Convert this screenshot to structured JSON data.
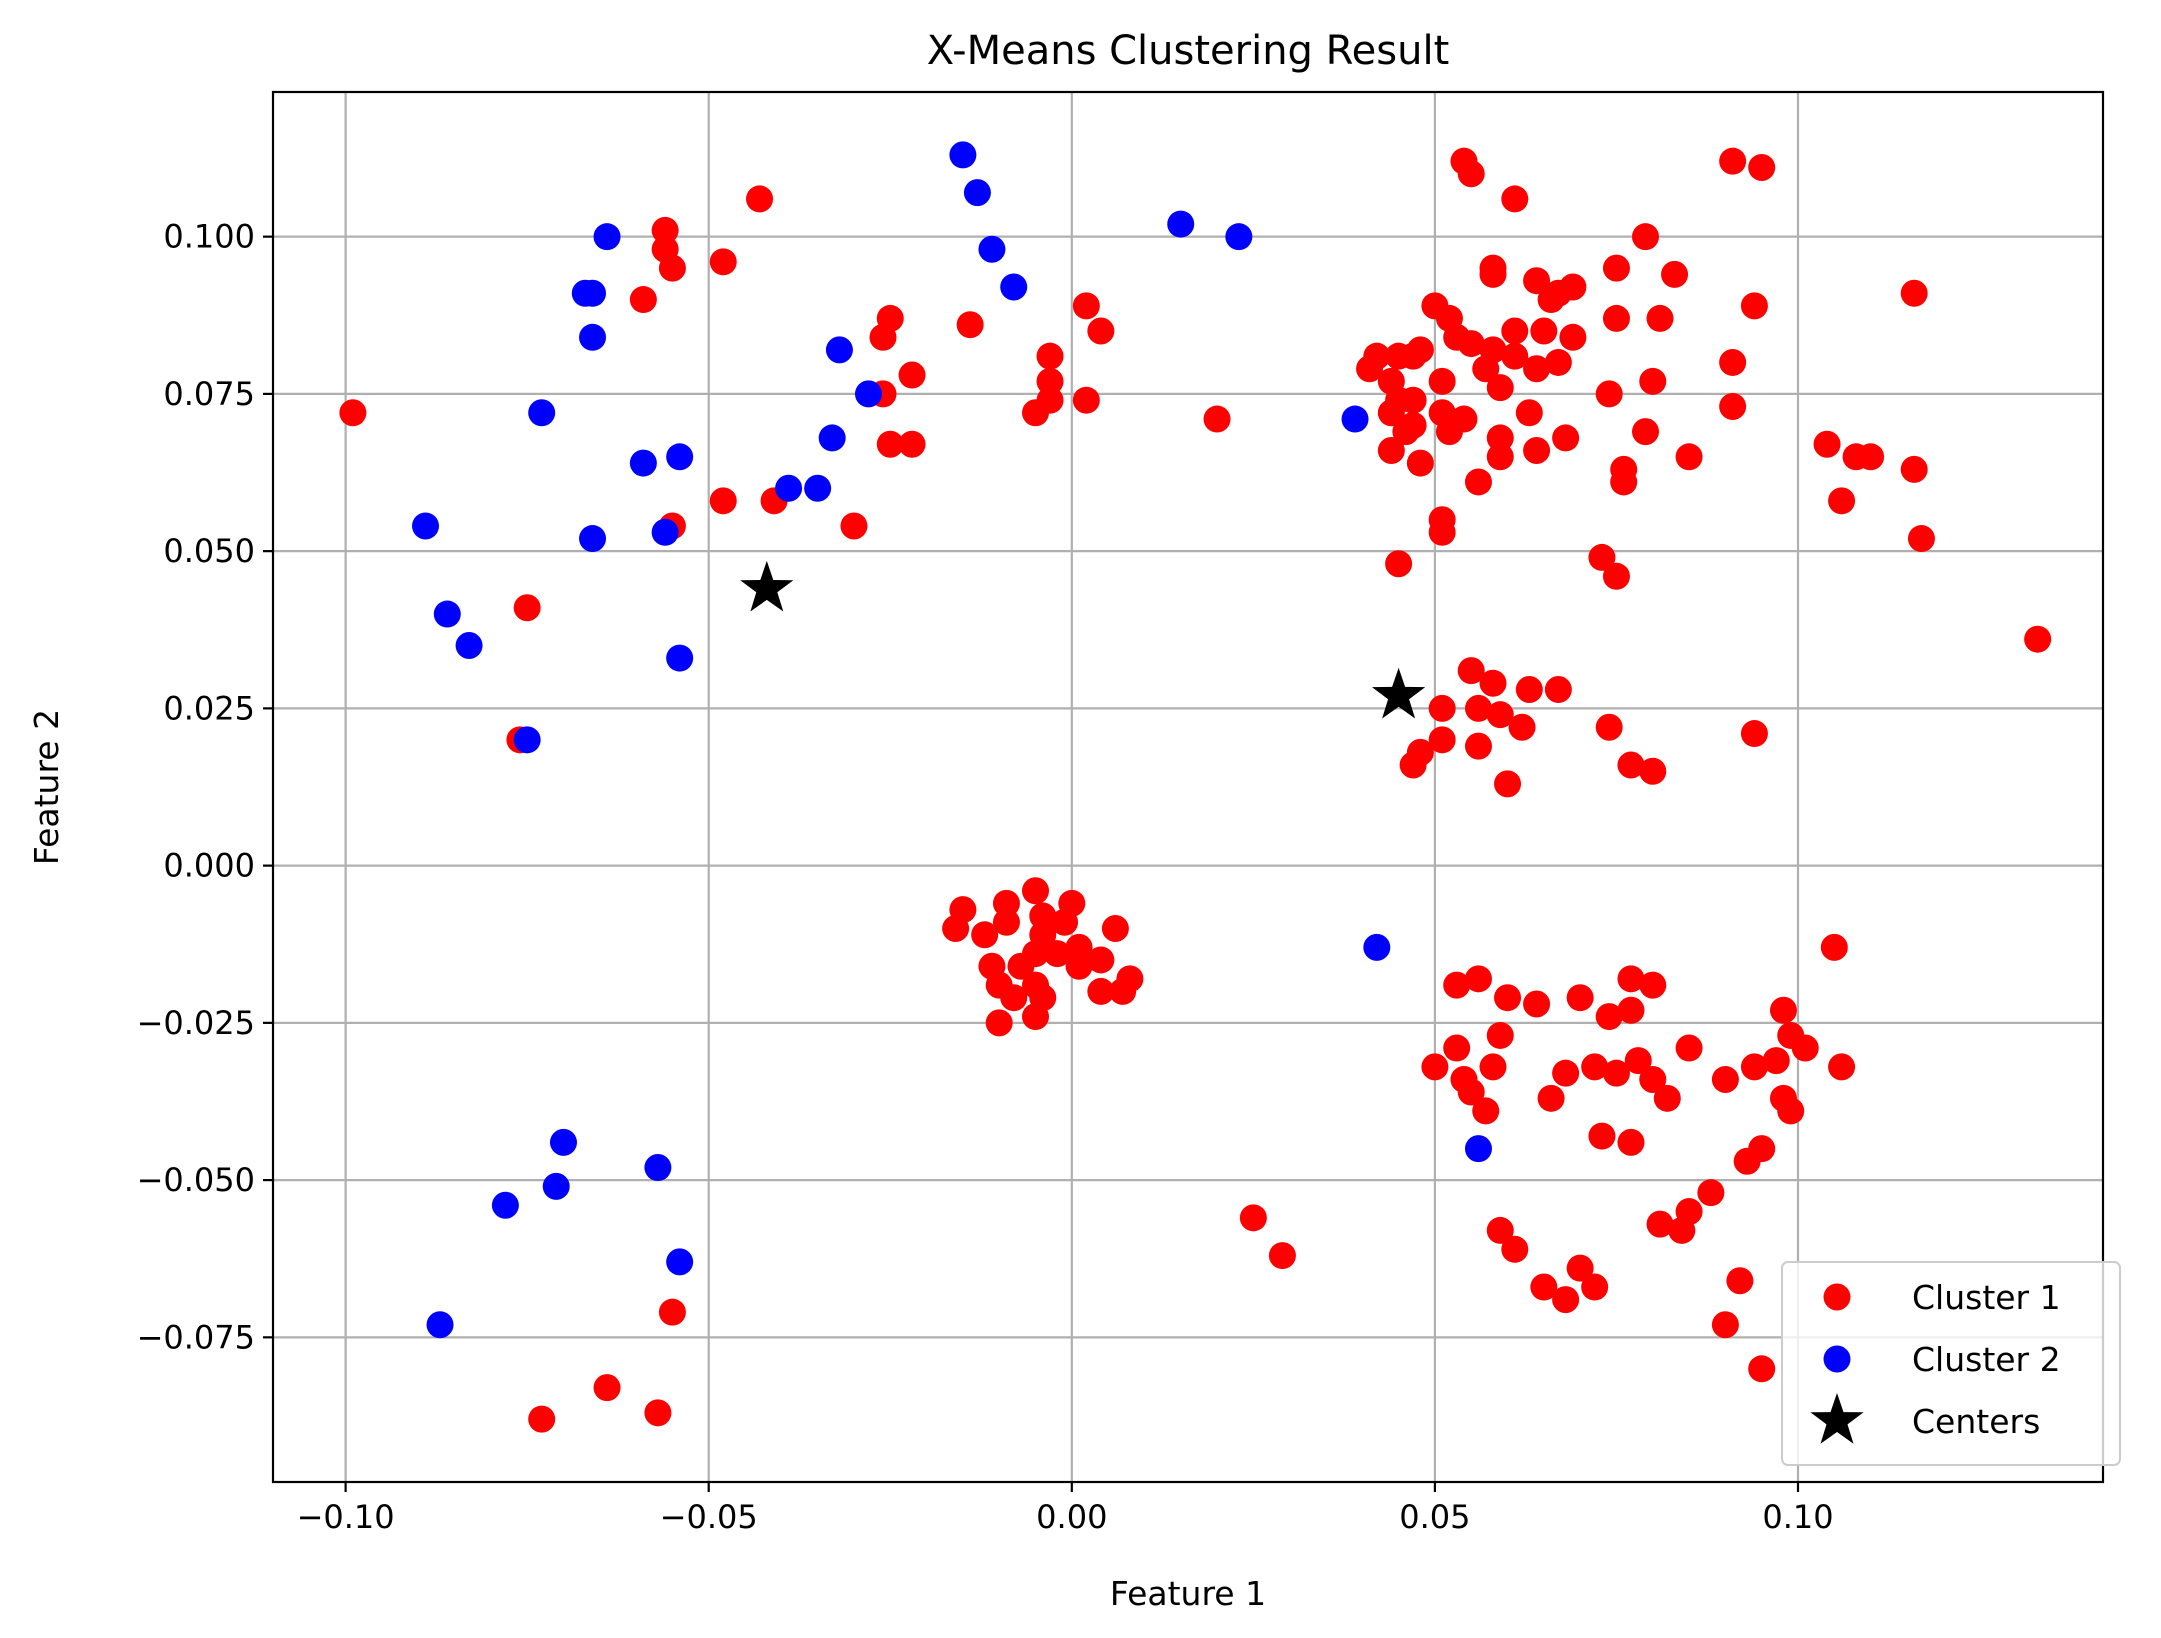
{
  "chart_data": {
    "type": "scatter",
    "title": "X-Means Clustering Result",
    "xlabel": "Feature 1",
    "ylabel": "Feature 2",
    "xlim": [
      -0.11,
      0.142
    ],
    "ylim": [
      -0.098,
      0.123
    ],
    "xticks": [
      -0.1,
      -0.05,
      0.0,
      0.05,
      0.1
    ],
    "xtick_labels": [
      "−0.10",
      "−0.05",
      "0.00",
      "0.05",
      "0.10"
    ],
    "yticks": [
      -0.075,
      -0.05,
      -0.025,
      0.0,
      0.025,
      0.05,
      0.075,
      0.1
    ],
    "ytick_labels": [
      "−0.075",
      "−0.050",
      "−0.025",
      "0.000",
      "0.025",
      "0.050",
      "0.075",
      "0.100"
    ],
    "grid": true,
    "legend_position": "lower-right",
    "series": [
      {
        "name": "Cluster 1",
        "color": "#ff0000",
        "marker": "circle",
        "points": [
          [
            -0.099,
            0.072
          ],
          [
            -0.056,
            0.101
          ],
          [
            -0.056,
            0.098
          ],
          [
            -0.055,
            0.095
          ],
          [
            -0.059,
            0.09
          ],
          [
            -0.043,
            0.106
          ],
          [
            -0.048,
            0.096
          ],
          [
            -0.048,
            0.058
          ],
          [
            -0.041,
            0.058
          ],
          [
            -0.03,
            0.054
          ],
          [
            -0.055,
            0.054
          ],
          [
            -0.075,
            0.041
          ],
          [
            -0.076,
            0.02
          ],
          [
            -0.025,
            0.087
          ],
          [
            -0.026,
            0.084
          ],
          [
            -0.022,
            0.078
          ],
          [
            -0.026,
            0.075
          ],
          [
            -0.025,
            0.067
          ],
          [
            -0.022,
            0.067
          ],
          [
            -0.014,
            0.086
          ],
          [
            -0.003,
            0.081
          ],
          [
            -0.003,
            0.077
          ],
          [
            -0.003,
            0.074
          ],
          [
            -0.005,
            0.072
          ],
          [
            0.002,
            0.089
          ],
          [
            0.004,
            0.085
          ],
          [
            0.002,
            0.074
          ],
          [
            0.02,
            0.071
          ],
          [
            0.041,
            0.079
          ],
          [
            0.042,
            0.081
          ],
          [
            0.045,
            0.081
          ],
          [
            0.047,
            0.081
          ],
          [
            0.048,
            0.082
          ],
          [
            0.044,
            0.077
          ],
          [
            0.045,
            0.074
          ],
          [
            0.047,
            0.074
          ],
          [
            0.044,
            0.072
          ],
          [
            0.046,
            0.069
          ],
          [
            0.044,
            0.066
          ],
          [
            0.048,
            0.064
          ],
          [
            0.047,
            0.07
          ],
          [
            0.051,
            0.072
          ],
          [
            0.05,
            0.089
          ],
          [
            0.052,
            0.087
          ],
          [
            0.053,
            0.084
          ],
          [
            0.055,
            0.083
          ],
          [
            0.058,
            0.082
          ],
          [
            0.061,
            0.081
          ],
          [
            0.061,
            0.085
          ],
          [
            0.057,
            0.079
          ],
          [
            0.059,
            0.076
          ],
          [
            0.051,
            0.077
          ],
          [
            0.052,
            0.069
          ],
          [
            0.054,
            0.071
          ],
          [
            0.059,
            0.068
          ],
          [
            0.059,
            0.065
          ],
          [
            0.056,
            0.061
          ],
          [
            0.051,
            0.055
          ],
          [
            0.051,
            0.053
          ],
          [
            0.045,
            0.048
          ],
          [
            0.054,
            0.112
          ],
          [
            0.055,
            0.11
          ],
          [
            0.061,
            0.106
          ],
          [
            0.058,
            0.094
          ],
          [
            0.058,
            0.095
          ],
          [
            0.064,
            0.093
          ],
          [
            0.066,
            0.09
          ],
          [
            0.067,
            0.091
          ],
          [
            0.069,
            0.092
          ],
          [
            0.065,
            0.085
          ],
          [
            0.067,
            0.08
          ],
          [
            0.064,
            0.079
          ],
          [
            0.069,
            0.084
          ],
          [
            0.063,
            0.072
          ],
          [
            0.064,
            0.066
          ],
          [
            0.068,
            0.068
          ],
          [
            0.075,
            0.095
          ],
          [
            0.079,
            0.1
          ],
          [
            0.083,
            0.094
          ],
          [
            0.075,
            0.087
          ],
          [
            0.081,
            0.087
          ],
          [
            0.074,
            0.075
          ],
          [
            0.08,
            0.077
          ],
          [
            0.079,
            0.069
          ],
          [
            0.076,
            0.063
          ],
          [
            0.076,
            0.061
          ],
          [
            0.085,
            0.065
          ],
          [
            0.073,
            0.049
          ],
          [
            0.075,
            0.046
          ],
          [
            0.091,
            0.112
          ],
          [
            0.095,
            0.111
          ],
          [
            0.094,
            0.089
          ],
          [
            0.091,
            0.08
          ],
          [
            0.091,
            0.073
          ],
          [
            0.116,
            0.091
          ],
          [
            0.104,
            0.067
          ],
          [
            0.108,
            0.065
          ],
          [
            0.11,
            0.065
          ],
          [
            0.116,
            0.063
          ],
          [
            0.106,
            0.058
          ],
          [
            0.117,
            0.052
          ],
          [
            0.133,
            0.036
          ],
          [
            0.055,
            0.031
          ],
          [
            0.058,
            0.029
          ],
          [
            0.063,
            0.028
          ],
          [
            0.067,
            0.028
          ],
          [
            0.051,
            0.025
          ],
          [
            0.056,
            0.025
          ],
          [
            0.059,
            0.024
          ],
          [
            0.062,
            0.022
          ],
          [
            0.056,
            0.019
          ],
          [
            0.051,
            0.02
          ],
          [
            0.048,
            0.018
          ],
          [
            0.047,
            0.016
          ],
          [
            0.06,
            0.013
          ],
          [
            0.074,
            0.022
          ],
          [
            0.077,
            0.016
          ],
          [
            0.08,
            0.015
          ],
          [
            0.094,
            0.021
          ],
          [
            -0.016,
            -0.01
          ],
          [
            -0.015,
            -0.007
          ],
          [
            -0.012,
            -0.011
          ],
          [
            -0.009,
            -0.006
          ],
          [
            -0.009,
            -0.009
          ],
          [
            -0.005,
            -0.004
          ],
          [
            -0.004,
            -0.008
          ],
          [
            -0.004,
            -0.011
          ],
          [
            -0.001,
            -0.009
          ],
          [
            0.0,
            -0.006
          ],
          [
            0.006,
            -0.01
          ],
          [
            -0.011,
            -0.016
          ],
          [
            -0.007,
            -0.016
          ],
          [
            -0.005,
            -0.014
          ],
          [
            -0.002,
            -0.014
          ],
          [
            0.001,
            -0.013
          ],
          [
            0.001,
            -0.016
          ],
          [
            0.004,
            -0.015
          ],
          [
            -0.01,
            -0.019
          ],
          [
            -0.008,
            -0.021
          ],
          [
            -0.005,
            -0.019
          ],
          [
            -0.004,
            -0.021
          ],
          [
            0.004,
            -0.02
          ],
          [
            0.007,
            -0.02
          ],
          [
            0.008,
            -0.018
          ],
          [
            -0.01,
            -0.025
          ],
          [
            -0.005,
            -0.024
          ],
          [
            0.053,
            -0.019
          ],
          [
            0.056,
            -0.018
          ],
          [
            0.06,
            -0.021
          ],
          [
            0.064,
            -0.022
          ],
          [
            0.07,
            -0.021
          ],
          [
            0.077,
            -0.018
          ],
          [
            0.08,
            -0.019
          ],
          [
            0.074,
            -0.024
          ],
          [
            0.077,
            -0.023
          ],
          [
            0.059,
            -0.027
          ],
          [
            0.053,
            -0.029
          ],
          [
            0.05,
            -0.032
          ],
          [
            0.054,
            -0.034
          ],
          [
            0.058,
            -0.032
          ],
          [
            0.055,
            -0.036
          ],
          [
            0.057,
            -0.039
          ],
          [
            0.066,
            -0.037
          ],
          [
            0.068,
            -0.033
          ],
          [
            0.072,
            -0.032
          ],
          [
            0.075,
            -0.033
          ],
          [
            0.078,
            -0.031
          ],
          [
            0.08,
            -0.034
          ],
          [
            0.082,
            -0.037
          ],
          [
            0.085,
            -0.029
          ],
          [
            0.073,
            -0.043
          ],
          [
            0.077,
            -0.044
          ],
          [
            0.09,
            -0.034
          ],
          [
            0.094,
            -0.032
          ],
          [
            0.097,
            -0.031
          ],
          [
            0.098,
            -0.023
          ],
          [
            0.099,
            -0.027
          ],
          [
            0.101,
            -0.029
          ],
          [
            0.098,
            -0.037
          ],
          [
            0.099,
            -0.039
          ],
          [
            0.106,
            -0.032
          ],
          [
            0.105,
            -0.013
          ],
          [
            0.095,
            -0.045
          ],
          [
            0.093,
            -0.047
          ],
          [
            0.088,
            -0.052
          ],
          [
            0.085,
            -0.055
          ],
          [
            0.084,
            -0.058
          ],
          [
            0.081,
            -0.057
          ],
          [
            0.059,
            -0.058
          ],
          [
            0.061,
            -0.061
          ],
          [
            0.065,
            -0.067
          ],
          [
            0.068,
            -0.069
          ],
          [
            0.07,
            -0.064
          ],
          [
            0.072,
            -0.067
          ],
          [
            0.092,
            -0.066
          ],
          [
            0.09,
            -0.073
          ],
          [
            0.095,
            -0.08
          ],
          [
            0.025,
            -0.056
          ],
          [
            0.029,
            -0.062
          ],
          [
            -0.055,
            -0.071
          ],
          [
            -0.064,
            -0.083
          ],
          [
            -0.057,
            -0.087
          ],
          [
            -0.073,
            -0.088
          ]
        ]
      },
      {
        "name": "Cluster 2",
        "color": "#0000ff",
        "marker": "circle",
        "points": [
          [
            -0.064,
            0.1
          ],
          [
            -0.067,
            0.091
          ],
          [
            -0.066,
            0.091
          ],
          [
            -0.066,
            0.084
          ],
          [
            -0.073,
            0.072
          ],
          [
            -0.059,
            0.064
          ],
          [
            -0.054,
            0.065
          ],
          [
            -0.089,
            0.054
          ],
          [
            -0.066,
            0.052
          ],
          [
            -0.056,
            0.053
          ],
          [
            -0.086,
            0.04
          ],
          [
            -0.083,
            0.035
          ],
          [
            -0.054,
            0.033
          ],
          [
            -0.075,
            0.02
          ],
          [
            -0.015,
            0.113
          ],
          [
            -0.013,
            0.107
          ],
          [
            -0.011,
            0.098
          ],
          [
            -0.008,
            0.092
          ],
          [
            -0.032,
            0.082
          ],
          [
            -0.028,
            0.075
          ],
          [
            -0.033,
            0.068
          ],
          [
            -0.039,
            0.06
          ],
          [
            -0.035,
            0.06
          ],
          [
            0.015,
            0.102
          ],
          [
            0.023,
            0.1
          ],
          [
            0.039,
            0.071
          ],
          [
            0.042,
            -0.013
          ],
          [
            0.056,
            -0.045
          ],
          [
            -0.07,
            -0.044
          ],
          [
            -0.071,
            -0.051
          ],
          [
            -0.078,
            -0.054
          ],
          [
            -0.057,
            -0.048
          ],
          [
            -0.054,
            -0.063
          ],
          [
            -0.087,
            -0.073
          ]
        ]
      },
      {
        "name": "Centers",
        "color": "#000000",
        "marker": "star",
        "points": [
          [
            -0.042,
            0.044
          ],
          [
            0.045,
            0.027
          ]
        ]
      }
    ]
  }
}
